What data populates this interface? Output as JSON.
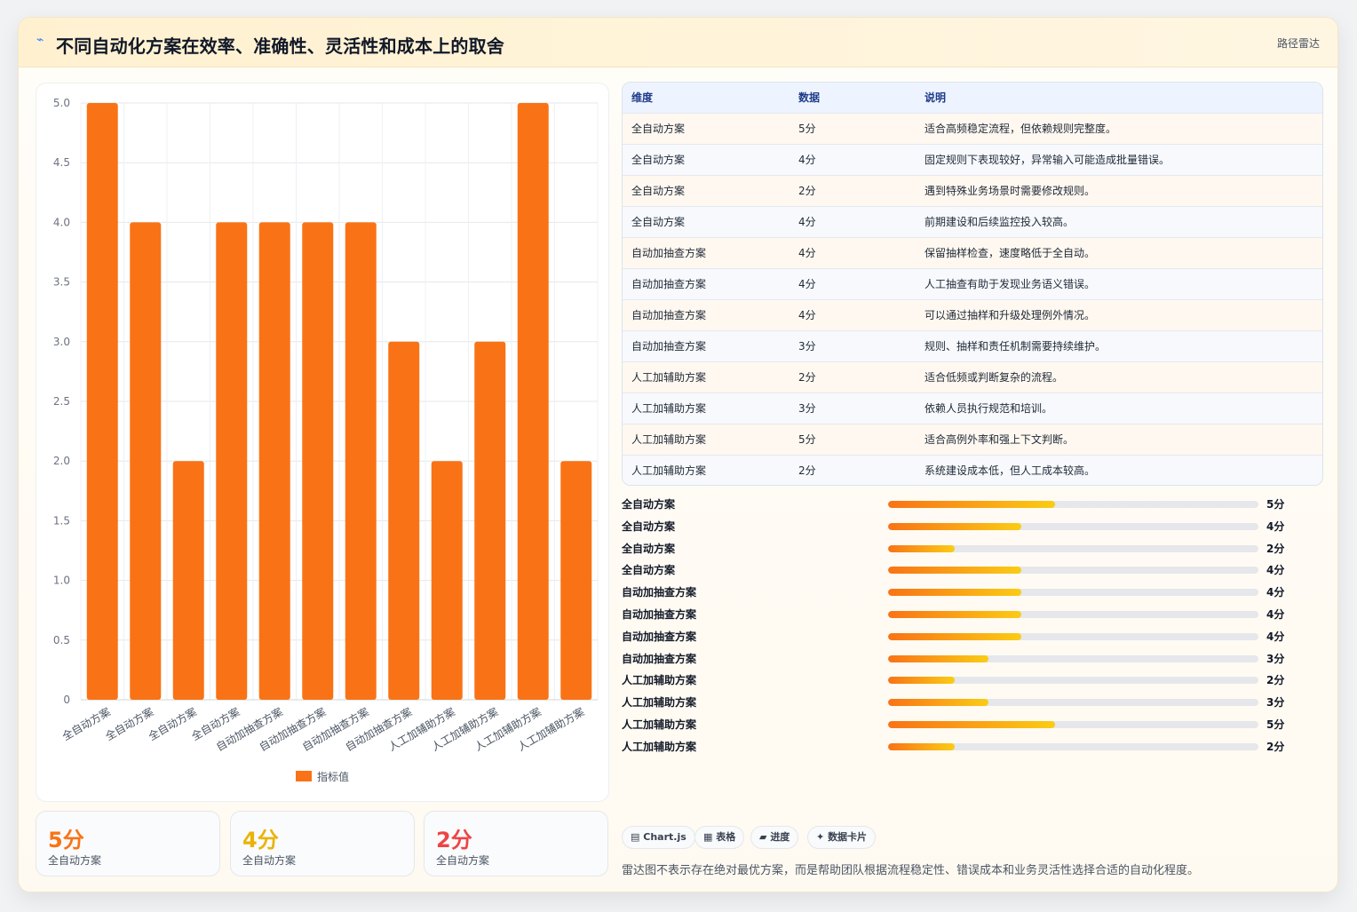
{
  "header": {
    "icon": "lightning-icon",
    "title": "不同自动化方案在效率、准确性、灵活性和成本上的取舍",
    "tag": "路径雷达"
  },
  "chart_data": {
    "type": "bar",
    "categories": [
      "全自动方案",
      "全自动方案",
      "全自动方案",
      "全自动方案",
      "自动加抽查方案",
      "自动加抽查方案",
      "自动加抽查方案",
      "自动加抽查方案",
      "人工加辅助方案",
      "人工加辅助方案",
      "人工加辅助方案",
      "人工加辅助方案"
    ],
    "series": [
      {
        "name": "指标值",
        "values": [
          5,
          4,
          2,
          4,
          4,
          4,
          4,
          3,
          2,
          3,
          5,
          2
        ],
        "color": "#f97316"
      }
    ],
    "ylim": [
      0,
      5
    ],
    "yticks": [
      5.0,
      4.5,
      4.0,
      3.5,
      3.0,
      2.5,
      2.0,
      1.5,
      1.0,
      0.5,
      0
    ],
    "grid": true,
    "legend": "bottom"
  },
  "table": {
    "headers": [
      "维度",
      "数据",
      "说明"
    ],
    "rows": [
      [
        "全自动方案",
        "5分",
        "适合高频稳定流程，但依赖规则完整度。"
      ],
      [
        "全自动方案",
        "4分",
        "固定规则下表现较好，异常输入可能造成批量错误。"
      ],
      [
        "全自动方案",
        "2分",
        "遇到特殊业务场景时需要修改规则。"
      ],
      [
        "全自动方案",
        "4分",
        "前期建设和后续监控投入较高。"
      ],
      [
        "自动加抽查方案",
        "4分",
        "保留抽样检查，速度略低于全自动。"
      ],
      [
        "自动加抽查方案",
        "4分",
        "人工抽查有助于发现业务语义错误。"
      ],
      [
        "自动加抽查方案",
        "4分",
        "可以通过抽样和升级处理例外情况。"
      ],
      [
        "自动加抽查方案",
        "3分",
        "规则、抽样和责任机制需要持续维护。"
      ],
      [
        "人工加辅助方案",
        "2分",
        "适合低频或判断复杂的流程。"
      ],
      [
        "人工加辅助方案",
        "3分",
        "依赖人员执行规范和培训。"
      ],
      [
        "人工加辅助方案",
        "5分",
        "适合高例外率和强上下文判断。"
      ],
      [
        "人工加辅助方案",
        "2分",
        "系统建设成本低，但人工成本较高。"
      ]
    ]
  },
  "progress": [
    {
      "label": "全自动方案",
      "value_text": "5分",
      "fraction": 0.45
    },
    {
      "label": "全自动方案",
      "value_text": "4分",
      "fraction": 0.36
    },
    {
      "label": "全自动方案",
      "value_text": "2分",
      "fraction": 0.18
    },
    {
      "label": "全自动方案",
      "value_text": "4分",
      "fraction": 0.36
    },
    {
      "label": "自动加抽查方案",
      "value_text": "4分",
      "fraction": 0.36
    },
    {
      "label": "自动加抽查方案",
      "value_text": "4分",
      "fraction": 0.36
    },
    {
      "label": "自动加抽查方案",
      "value_text": "4分",
      "fraction": 0.36
    },
    {
      "label": "自动加抽查方案",
      "value_text": "3分",
      "fraction": 0.27
    },
    {
      "label": "人工加辅助方案",
      "value_text": "2分",
      "fraction": 0.18
    },
    {
      "label": "人工加辅助方案",
      "value_text": "3分",
      "fraction": 0.27
    },
    {
      "label": "人工加辅助方案",
      "value_text": "5分",
      "fraction": 0.45
    },
    {
      "label": "人工加辅助方案",
      "value_text": "2分",
      "fraction": 0.18
    }
  ],
  "kpis": [
    {
      "value": "5分",
      "label": "全自动方案",
      "color": "#f97316"
    },
    {
      "value": "4分",
      "label": "全自动方案",
      "color": "#eab308"
    },
    {
      "value": "2分",
      "label": "全自动方案",
      "color": "#ef4444"
    }
  ],
  "chips": [
    {
      "icon": "chart-icon",
      "glyph": "▤",
      "label": "Chart.js"
    },
    {
      "icon": "table-icon",
      "glyph": "▦",
      "label": "表格"
    },
    {
      "icon": "progress-icon",
      "glyph": "▰",
      "label": "进度"
    },
    {
      "icon": "sparkle-icon",
      "glyph": "✦",
      "label": "数据卡片"
    }
  ],
  "footnote": "雷达图不表示存在绝对最优方案，而是帮助团队根据流程稳定性、错误成本和业务灵活性选择合适的自动化程度。"
}
